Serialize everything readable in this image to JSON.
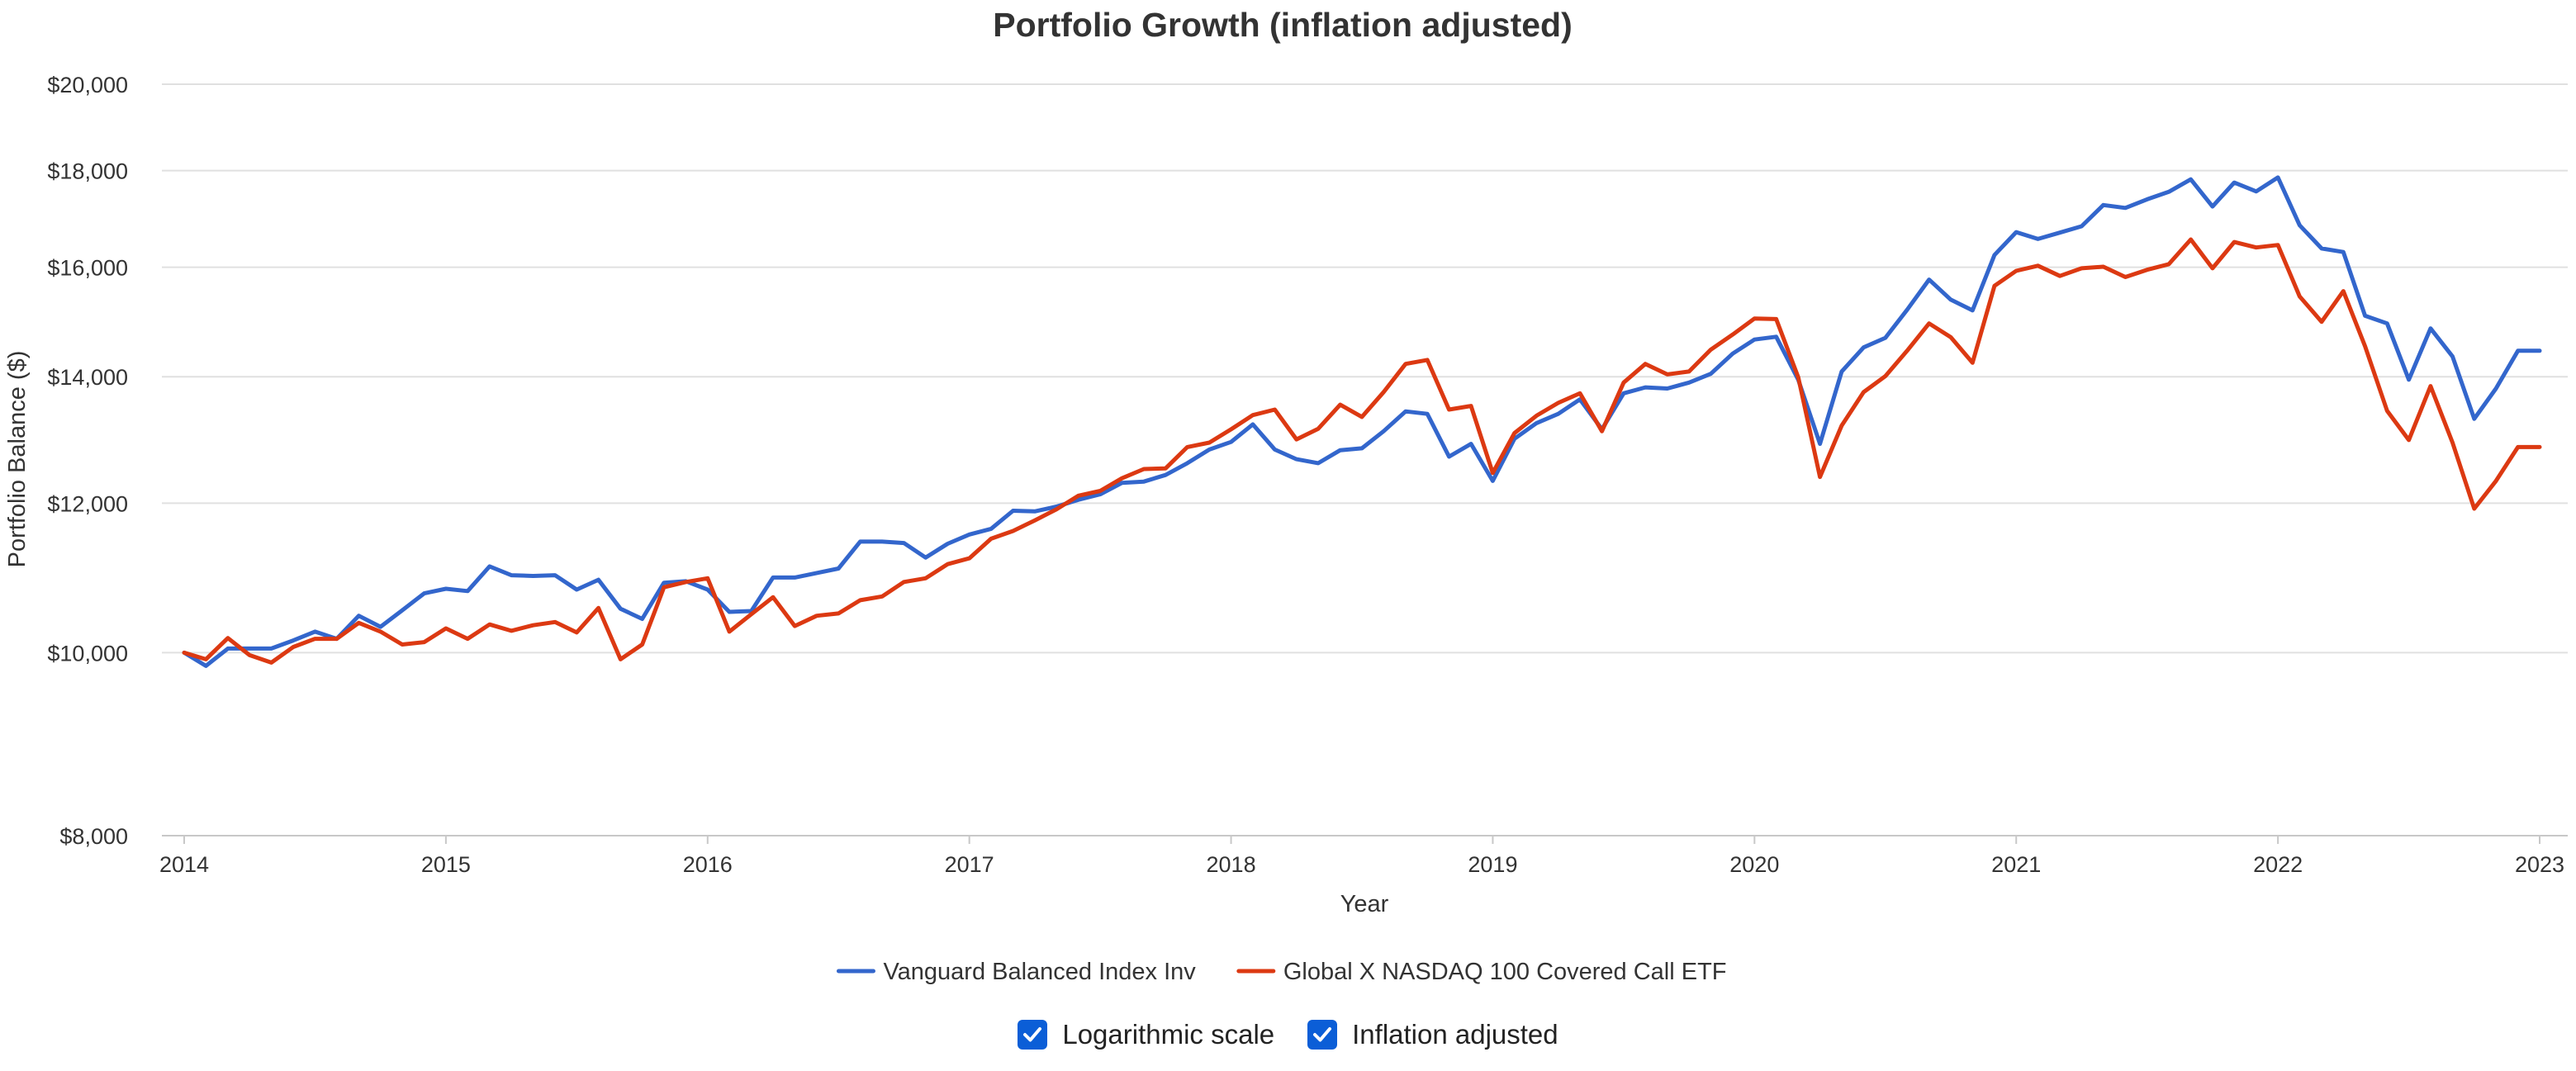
{
  "colors": {
    "series_a": "#3366cc",
    "series_b": "#dc3912",
    "checkbox": "#0b5ed7",
    "grid": "#e0e0e0",
    "axis_text": "#333333"
  },
  "chart_data": {
    "type": "line",
    "title": "Portfolio Growth (inflation adjusted)",
    "xlabel": "Year",
    "ylabel": "Portfolio Balance ($)",
    "y_scale": "log",
    "ylim": [
      8000,
      20000
    ],
    "xlim": [
      2014.0,
      2023.0
    ],
    "y_ticks": [
      8000,
      10000,
      12000,
      14000,
      16000,
      18000,
      20000
    ],
    "y_tick_labels": [
      "$8,000",
      "$10,000",
      "$12,000",
      "$14,000",
      "$16,000",
      "$18,000",
      "$20,000"
    ],
    "x_ticks": [
      2014,
      2015,
      2016,
      2017,
      2018,
      2019,
      2020,
      2021,
      2022,
      2023
    ],
    "x_tick_labels": [
      "2014",
      "2015",
      "2016",
      "2017",
      "2018",
      "2019",
      "2020",
      "2021",
      "2022",
      "2023"
    ],
    "grid": true,
    "legend_position": "bottom-center",
    "x": [
      2014.0,
      2014.083,
      2014.167,
      2014.25,
      2014.333,
      2014.417,
      2014.5,
      2014.583,
      2014.667,
      2014.75,
      2014.833,
      2014.917,
      2015.0,
      2015.083,
      2015.167,
      2015.25,
      2015.333,
      2015.417,
      2015.5,
      2015.583,
      2015.667,
      2015.75,
      2015.833,
      2015.917,
      2016.0,
      2016.083,
      2016.167,
      2016.25,
      2016.333,
      2016.417,
      2016.5,
      2016.583,
      2016.667,
      2016.75,
      2016.833,
      2016.917,
      2017.0,
      2017.083,
      2017.167,
      2017.25,
      2017.333,
      2017.417,
      2017.5,
      2017.583,
      2017.667,
      2017.75,
      2017.833,
      2017.917,
      2018.0,
      2018.083,
      2018.167,
      2018.25,
      2018.333,
      2018.417,
      2018.5,
      2018.583,
      2018.667,
      2018.75,
      2018.833,
      2018.917,
      2019.0,
      2019.083,
      2019.167,
      2019.25,
      2019.333,
      2019.417,
      2019.5,
      2019.583,
      2019.667,
      2019.75,
      2019.833,
      2019.917,
      2020.0,
      2020.083,
      2020.167,
      2020.25,
      2020.333,
      2020.417,
      2020.5,
      2020.583,
      2020.667,
      2020.75,
      2020.833,
      2020.917,
      2021.0,
      2021.083,
      2021.167,
      2021.25,
      2021.333,
      2021.417,
      2021.5,
      2021.583,
      2021.667,
      2021.75,
      2021.833,
      2021.917,
      2022.0,
      2022.083,
      2022.167,
      2022.25,
      2022.333,
      2022.417,
      2022.5,
      2022.583,
      2022.667,
      2022.75,
      2022.833,
      2022.917,
      2023.0
    ],
    "series": [
      {
        "name": "Vanguard Balanced Index Inv",
        "values": [
          10000,
          9840,
          10050,
          10050,
          10050,
          10150,
          10260,
          10170,
          10460,
          10320,
          10530,
          10750,
          10810,
          10780,
          11110,
          10990,
          10980,
          10990,
          10800,
          10930,
          10550,
          10420,
          10890,
          10910,
          10800,
          10510,
          10520,
          10960,
          10960,
          11020,
          11080,
          11450,
          11450,
          11430,
          11230,
          11420,
          11550,
          11630,
          11890,
          11880,
          11950,
          12050,
          12130,
          12300,
          12320,
          12420,
          12600,
          12810,
          12930,
          13210,
          12810,
          12660,
          12600,
          12800,
          12830,
          13100,
          13420,
          13380,
          12700,
          12900,
          12330,
          12980,
          13230,
          13380,
          13620,
          13130,
          13720,
          13820,
          13800,
          13900,
          14050,
          14400,
          14650,
          14700,
          13950,
          12900,
          14090,
          14510,
          14680,
          15190,
          15760,
          15380,
          15180,
          16240,
          16700,
          16560,
          16690,
          16820,
          17260,
          17200,
          17380,
          17540,
          17810,
          17230,
          17740,
          17550,
          17850,
          16840,
          16370,
          16300,
          15080,
          14940,
          13950,
          14850,
          14350,
          13300,
          13800,
          14450,
          14450
        ]
      },
      {
        "name": "Global X NASDAQ 100 Covered Call ETF",
        "values": [
          10000,
          9920,
          10180,
          9970,
          9880,
          10070,
          10170,
          10170,
          10370,
          10260,
          10100,
          10130,
          10300,
          10170,
          10350,
          10270,
          10340,
          10380,
          10250,
          10560,
          9920,
          10100,
          10830,
          10900,
          10950,
          10260,
          10480,
          10700,
          10330,
          10460,
          10490,
          10660,
          10710,
          10900,
          10950,
          11140,
          11220,
          11490,
          11600,
          11750,
          11910,
          12110,
          12180,
          12370,
          12510,
          12520,
          12850,
          12920,
          13130,
          13360,
          13450,
          12970,
          13140,
          13530,
          13330,
          13740,
          14220,
          14290,
          13450,
          13510,
          12450,
          13070,
          13350,
          13560,
          13720,
          13100,
          13900,
          14220,
          14040,
          14090,
          14470,
          14740,
          15030,
          15020,
          13990,
          12390,
          13190,
          13740,
          14010,
          14450,
          14940,
          14690,
          14240,
          15640,
          15930,
          16030,
          15830,
          15980,
          16010,
          15810,
          15950,
          16060,
          16550,
          15980,
          16500,
          16390,
          16440,
          15440,
          14970,
          15540,
          14530,
          13430,
          12960,
          13840,
          12920,
          11920,
          12330,
          12850,
          12850
        ]
      }
    ]
  },
  "controls": {
    "log_scale_label": "Logarithmic scale",
    "log_scale_checked": true,
    "inflation_label": "Inflation adjusted",
    "inflation_checked": true
  }
}
